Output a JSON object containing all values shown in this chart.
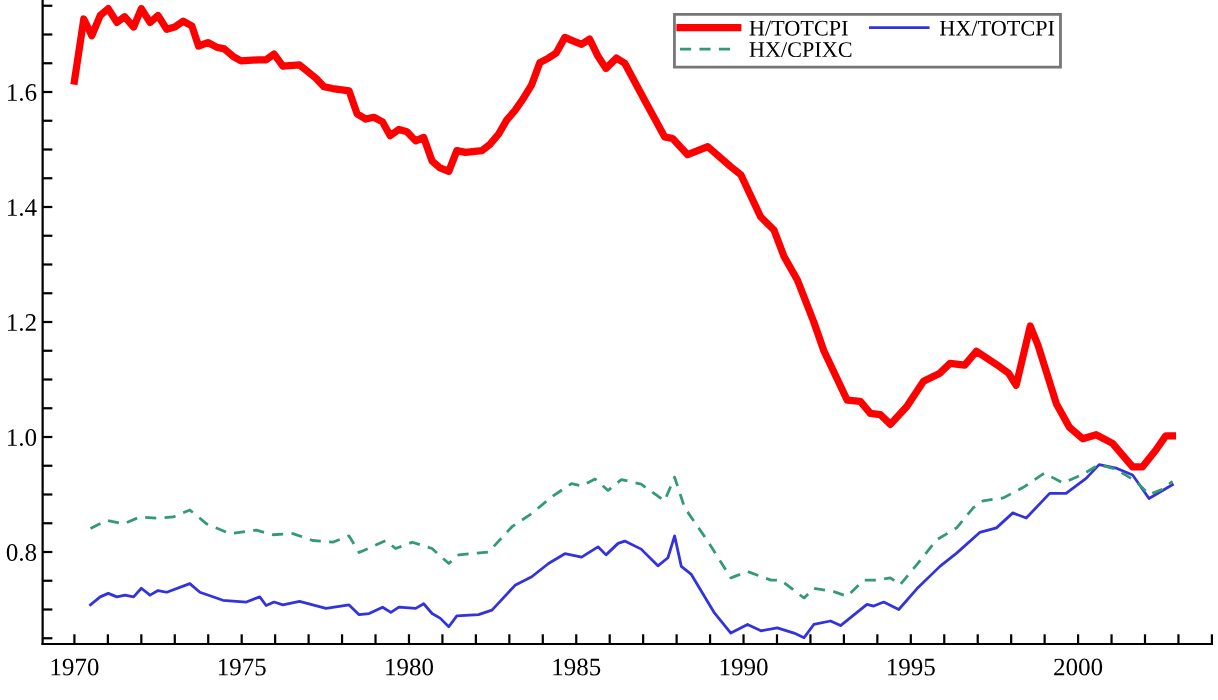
{
  "chart_data": {
    "type": "line",
    "xlim": [
      1969.05,
      2004
    ],
    "ylim": [
      0.64,
      1.76
    ],
    "xticks": [
      1970,
      {
        "value": 1971,
        "label": null
      },
      {
        "value": 1972,
        "label": null
      },
      {
        "value": 1973,
        "label": null
      },
      {
        "value": 1974,
        "label": null
      },
      1975,
      {
        "value": 1976,
        "label": null
      },
      {
        "value": 1977,
        "label": null
      },
      {
        "value": 1978,
        "label": null
      },
      {
        "value": 1979,
        "label": null
      },
      1980,
      {
        "value": 1981,
        "label": null
      },
      {
        "value": 1982,
        "label": null
      },
      {
        "value": 1983,
        "label": null
      },
      {
        "value": 1984,
        "label": null
      },
      1985,
      {
        "value": 1986,
        "label": null
      },
      {
        "value": 1987,
        "label": null
      },
      {
        "value": 1988,
        "label": null
      },
      {
        "value": 1989,
        "label": null
      },
      1990,
      {
        "value": 1991,
        "label": null
      },
      {
        "value": 1992,
        "label": null
      },
      {
        "value": 1993,
        "label": null
      },
      {
        "value": 1994,
        "label": null
      },
      1995,
      {
        "value": 1996,
        "label": null
      },
      {
        "value": 1997,
        "label": null
      },
      {
        "value": 1998,
        "label": null
      },
      {
        "value": 1999,
        "label": null
      },
      2000,
      {
        "value": 2001,
        "label": null
      },
      {
        "value": 2002,
        "label": null
      },
      {
        "value": 2003,
        "label": null
      },
      {
        "value": 2004,
        "label": null
      }
    ],
    "yticks": [
      {
        "value": 0.65,
        "label": null
      },
      {
        "value": 0.7,
        "label": null
      },
      {
        "value": 0.75,
        "label": null
      },
      0.8,
      {
        "value": 0.85,
        "label": null
      },
      {
        "value": 0.9,
        "label": null
      },
      {
        "value": 0.95,
        "label": null
      },
      {
        "value": 1,
        "label": "1.0"
      },
      {
        "value": 1.05,
        "label": null
      },
      {
        "value": 1.1,
        "label": null
      },
      {
        "value": 1.15,
        "label": null
      },
      1.2,
      {
        "value": 1.25,
        "label": null
      },
      {
        "value": 1.3,
        "label": null
      },
      {
        "value": 1.35,
        "label": null
      },
      1.4,
      {
        "value": 1.45,
        "label": null
      },
      {
        "value": 1.5,
        "label": null
      },
      {
        "value": 1.55,
        "label": null
      },
      1.6,
      {
        "value": 1.65,
        "label": null
      },
      {
        "value": 1.7,
        "label": null
      },
      {
        "value": 1.75,
        "label": null
      }
    ],
    "grid": false,
    "legend": "top right",
    "marker": "none",
    "series": [
      {
        "name": "H/TOTCPI",
        "color": "#ff0000",
        "line_style": "solid",
        "x": [
          1970.0,
          1970.28,
          1970.52,
          1970.77,
          1971.01,
          1971.27,
          1971.5,
          1971.77,
          1972.0,
          1972.26,
          1972.5,
          1972.76,
          1973.0,
          1973.25,
          1973.51,
          1973.71,
          1973.99,
          1974.25,
          1974.48,
          1974.74,
          1974.98,
          1975.48,
          1975.73,
          1975.97,
          1976.23,
          1976.73,
          1977.22,
          1977.46,
          1977.72,
          1978.21,
          1978.45,
          1978.71,
          1978.95,
          1979.21,
          1979.44,
          1979.7,
          1979.94,
          1980.2,
          1980.44,
          1980.69,
          1980.93,
          1981.19,
          1981.43,
          1981.69,
          1982.18,
          1982.42,
          1982.68,
          1982.92,
          1983.17,
          1983.41,
          1983.67,
          1983.91,
          1984.17,
          1984.4,
          1984.66,
          1984.9,
          1985.16,
          1985.4,
          1985.65,
          1985.89,
          1986.2,
          1986.45,
          1987.04,
          1987.64,
          1987.88,
          1988.33,
          1988.93,
          1989.62,
          1989.92,
          1990.51,
          1990.91,
          1991.21,
          1991.61,
          1992.1,
          1992.4,
          1993.1,
          1993.49,
          1993.79,
          1994.09,
          1994.39,
          1994.88,
          1995.38,
          1995.87,
          1996.17,
          1996.61,
          1996.96,
          1997.66,
          1997.92,
          1998.15,
          1998.57,
          1998.8,
          1999.35,
          1999.74,
          2000.14,
          2000.54,
          2001.03,
          2001.63,
          2001.92,
          2002.32,
          2002.62,
          2002.82
        ],
        "values": [
          1.619,
          1.727,
          1.698,
          1.733,
          1.745,
          1.721,
          1.731,
          1.713,
          1.745,
          1.721,
          1.733,
          1.709,
          1.713,
          1.723,
          1.715,
          1.68,
          1.686,
          1.678,
          1.675,
          1.662,
          1.654,
          1.656,
          1.656,
          1.666,
          1.645,
          1.647,
          1.624,
          1.609,
          1.606,
          1.602,
          1.562,
          1.553,
          1.556,
          1.548,
          1.524,
          1.535,
          1.531,
          1.515,
          1.521,
          1.48,
          1.468,
          1.462,
          1.498,
          1.495,
          1.498,
          1.509,
          1.527,
          1.551,
          1.568,
          1.588,
          1.613,
          1.651,
          1.659,
          1.668,
          1.695,
          1.689,
          1.683,
          1.692,
          1.662,
          1.641,
          1.659,
          1.65,
          1.586,
          1.522,
          1.519,
          1.491,
          1.505,
          1.47,
          1.456,
          1.383,
          1.36,
          1.314,
          1.273,
          1.2,
          1.15,
          1.064,
          1.062,
          1.041,
          1.039,
          1.022,
          1.053,
          1.097,
          1.111,
          1.128,
          1.125,
          1.149,
          1.122,
          1.111,
          1.09,
          1.193,
          1.16,
          1.058,
          1.017,
          0.997,
          1.004,
          0.989,
          0.948,
          0.948,
          0.977,
          1.002,
          1.002
        ]
      },
      {
        "name": "HX/TOTCPI",
        "color": "#3333dd",
        "line_style": "solid",
        "x": [
          1970.48,
          1970.77,
          1971.01,
          1971.27,
          1971.51,
          1971.77,
          1972.0,
          1972.26,
          1972.5,
          1972.76,
          1973.45,
          1973.75,
          1974.44,
          1975.14,
          1975.54,
          1975.73,
          1975.97,
          1976.23,
          1976.73,
          1977.52,
          1978.21,
          1978.51,
          1978.81,
          1979.21,
          1979.46,
          1979.7,
          1980.2,
          1980.44,
          1980.69,
          1980.93,
          1981.19,
          1981.43,
          1982.08,
          1982.48,
          1983.17,
          1983.67,
          1984.17,
          1984.66,
          1985.16,
          1985.65,
          1985.89,
          1986.25,
          1986.45,
          1986.94,
          1987.44,
          1987.74,
          1987.94,
          1988.14,
          1988.44,
          1989.13,
          1989.62,
          1990.12,
          1990.52,
          1991.01,
          1991.51,
          1991.81,
          1992.1,
          1992.6,
          1992.9,
          1993.69,
          1993.89,
          1994.19,
          1994.64,
          1995.18,
          1995.87,
          1996.37,
          1997.06,
          1997.56,
          1998.05,
          1998.45,
          1999.15,
          1999.64,
          2000.24,
          2000.63,
          2001.13,
          2001.63,
          2002.12,
          2002.82
        ],
        "values": [
          0.708,
          0.722,
          0.728,
          0.722,
          0.725,
          0.722,
          0.737,
          0.725,
          0.733,
          0.73,
          0.745,
          0.73,
          0.716,
          0.713,
          0.722,
          0.707,
          0.713,
          0.708,
          0.714,
          0.702,
          0.708,
          0.691,
          0.693,
          0.704,
          0.695,
          0.704,
          0.702,
          0.71,
          0.693,
          0.685,
          0.67,
          0.689,
          0.691,
          0.699,
          0.742,
          0.757,
          0.78,
          0.797,
          0.791,
          0.809,
          0.795,
          0.815,
          0.819,
          0.805,
          0.776,
          0.79,
          0.828,
          0.775,
          0.761,
          0.694,
          0.659,
          0.674,
          0.663,
          0.668,
          0.659,
          0.651,
          0.674,
          0.68,
          0.672,
          0.709,
          0.706,
          0.713,
          0.7,
          0.736,
          0.775,
          0.798,
          0.834,
          0.842,
          0.868,
          0.859,
          0.902,
          0.902,
          0.928,
          0.952,
          0.946,
          0.934,
          0.893,
          0.917
        ]
      },
      {
        "name": "HX/CPIXC",
        "color": "#339977",
        "line_style": "dashed",
        "x": [
          1970.48,
          1970.97,
          1971.47,
          1971.96,
          1972.46,
          1972.96,
          1973.45,
          1973.95,
          1974.64,
          1975.44,
          1975.93,
          1976.53,
          1977.12,
          1977.72,
          1978.21,
          1978.51,
          1979.31,
          1979.6,
          1980.1,
          1980.69,
          1981.19,
          1981.49,
          1982.38,
          1983.08,
          1983.67,
          1984.27,
          1984.86,
          1985.16,
          1985.56,
          1985.95,
          1986.35,
          1986.94,
          1987.64,
          1987.94,
          1988.24,
          1988.93,
          1989.62,
          1990.12,
          1990.82,
          1991.11,
          1991.81,
          1992.1,
          1992.7,
          1993.1,
          1993.59,
          1993.99,
          1994.39,
          1994.68,
          1995.18,
          1995.77,
          1996.37,
          1996.87,
          1997.16,
          1997.76,
          1998.35,
          1998.99,
          1999.55,
          2000.14,
          2000.63,
          2001.13,
          2001.73,
          2002.12,
          2002.52,
          2002.82
        ],
        "values": [
          0.841,
          0.855,
          0.849,
          0.861,
          0.859,
          0.861,
          0.873,
          0.849,
          0.832,
          0.838,
          0.83,
          0.832,
          0.82,
          0.817,
          0.828,
          0.799,
          0.82,
          0.806,
          0.817,
          0.806,
          0.78,
          0.795,
          0.8,
          0.844,
          0.867,
          0.896,
          0.919,
          0.915,
          0.927,
          0.907,
          0.926,
          0.918,
          0.889,
          0.93,
          0.877,
          0.819,
          0.755,
          0.766,
          0.751,
          0.751,
          0.72,
          0.737,
          0.731,
          0.723,
          0.751,
          0.751,
          0.755,
          0.743,
          0.778,
          0.821,
          0.842,
          0.877,
          0.889,
          0.894,
          0.912,
          0.937,
          0.92,
          0.935,
          0.952,
          0.944,
          0.923,
          0.9,
          0.909,
          0.923
        ]
      }
    ]
  }
}
